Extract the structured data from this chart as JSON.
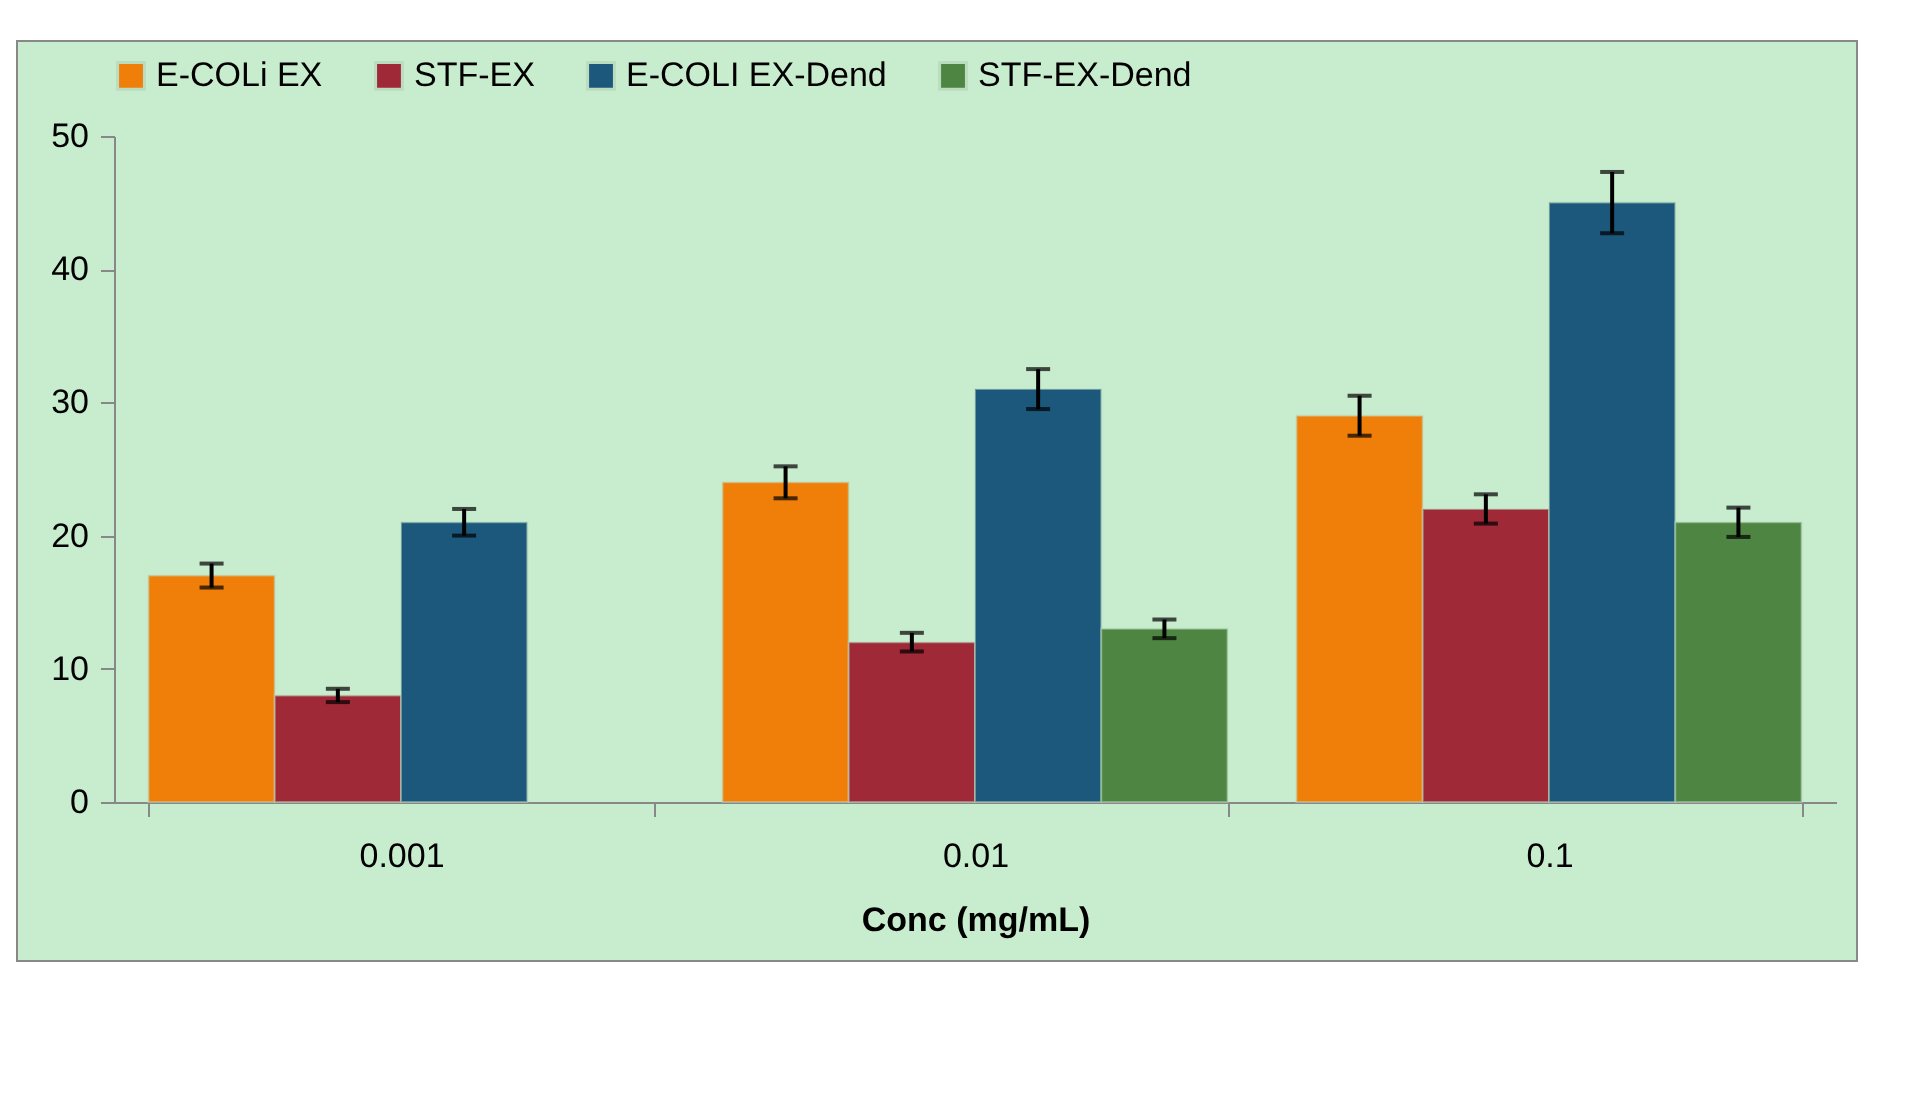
{
  "chart_data": {
    "type": "bar",
    "xlabel": "Conc (mg/mL)",
    "categories": [
      "0.001",
      "0.01",
      "0.1"
    ],
    "series": [
      {
        "name": "E-COLi EX",
        "color": "#f07f09",
        "values": [
          17,
          24,
          29
        ],
        "errors": [
          0.9,
          1.2,
          1.5
        ]
      },
      {
        "name": "STF-EX",
        "color": "#9f2936",
        "values": [
          8,
          12,
          22
        ],
        "errors": [
          0.5,
          0.7,
          1.1
        ]
      },
      {
        "name": "E-COLI EX-Dend",
        "color": "#1b587c",
        "values": [
          21,
          31,
          45
        ],
        "errors": [
          1,
          1.5,
          2.3
        ]
      },
      {
        "name": "STF-EX-Dend",
        "color": "#4e8542",
        "values": [
          null,
          13,
          21
        ],
        "errors": [
          null,
          0.7,
          1.1
        ]
      }
    ],
    "ylim": [
      0,
      50
    ],
    "yticks": [
      0,
      10,
      20,
      30,
      40,
      50
    ],
    "grid": false,
    "legend": "top"
  }
}
